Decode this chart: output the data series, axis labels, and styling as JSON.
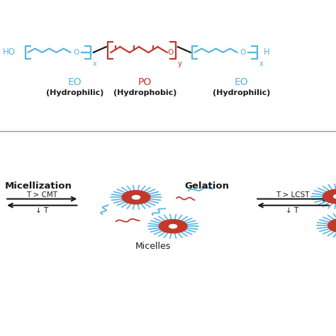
{
  "bg_color": "#ffffff",
  "blue": "#5ab4e0",
  "red": "#c0392b",
  "black": "#1a1a1a",
  "gray_line": "#8899bb",
  "eo_label": "EO",
  "eo_sub": "(Hydrophilic)",
  "po_label": "PO",
  "po_sub": "(Hydrophobic)",
  "micellization_label": "Micellization",
  "gelation_label": "Gelation",
  "micelles_label": "Micelles",
  "cmt_label": "T > CMT",
  "down_t1": "↓ T",
  "lcst_label": "T > LCST",
  "down_t2": "↓ T"
}
